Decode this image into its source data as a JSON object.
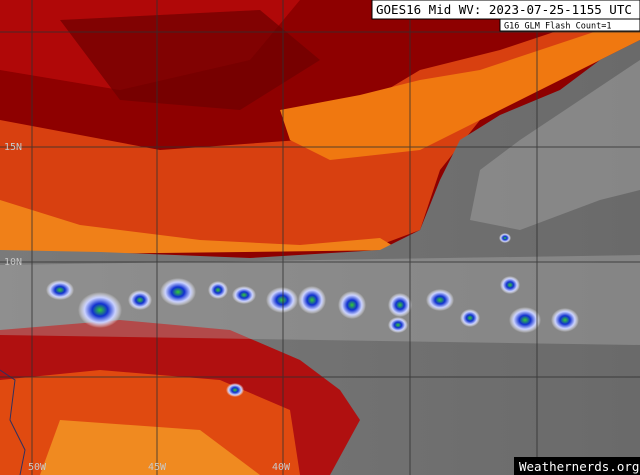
{
  "header": {
    "title": "GOES16 Mid WV: 2023-07-25-1155 UTC",
    "subtitle": "G16 GLM Flash Count=1"
  },
  "grid_labels": {
    "latitudes": [
      "15N",
      "10N"
    ],
    "longitudes": [
      "50W",
      "45W",
      "40W"
    ]
  },
  "watermark": "Weathernerds.org"
}
